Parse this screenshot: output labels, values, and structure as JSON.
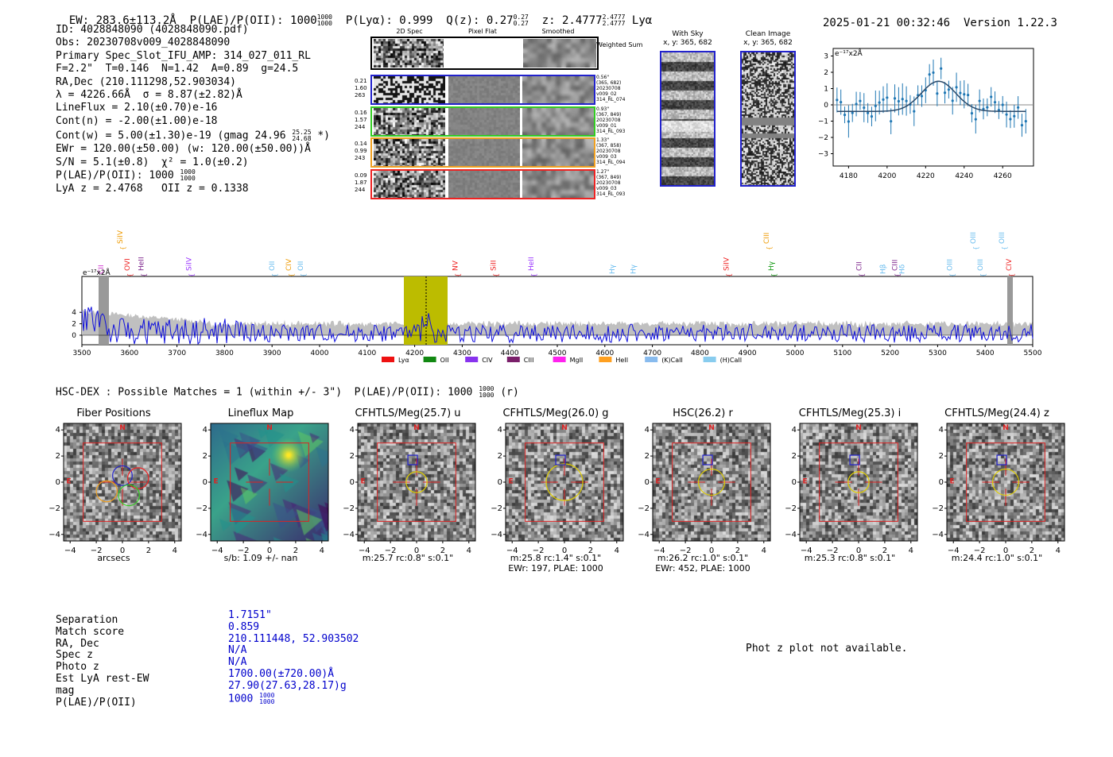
{
  "header": {
    "ew": "EW: 283.6±113.2Å",
    "plae_label": "P(LAE)/P(OII): 1000",
    "plae_hi": "1000",
    "plae_lo": "1000",
    "plya": "P(Lyα): 0.999",
    "qz_label": "Q(z): 0.27",
    "qz_hi": "0.27",
    "qz_lo": "0.27",
    "z_label": "z: 2.4777",
    "z_hi": "2.4777",
    "z_lo": "2.4777",
    "z_line": "Lyα",
    "timestamp": "2025-01-21 00:32:46",
    "version": "Version 1.22.3"
  },
  "info": {
    "id": "ID: 4028848090 (4028848090.pdf)",
    "obs": "Obs: 20230708v009_4028848090",
    "primary": "Primary Spec_Slot_IFU_AMP: 314_027_011_RL",
    "params": "F=2.2\"  T=0.146  N=1.42  A=0.89  g=24.5",
    "radec": "RA,Dec (210.111298,52.903034)",
    "lambda": "λ = 4226.66Å  σ = 8.87(±2.82)Å",
    "lineflux": "LineFlux = 2.10(±0.70)e-16",
    "contn": "Cont(n) = -2.00(±1.00)e-18",
    "contw": "Cont(w) = 5.00(±1.30)e-19 (gmag 24.96",
    "contw_hi": "25.25",
    "contw_lo": "24.68",
    "contw_end": "*)",
    "ewr": "EWr = 120.00(±50.00) (w: 120.00(±50.00))Å",
    "sn": "S/N = 5.1(±0.8)  χ² = 1.0(±0.2)",
    "plae": "P(LAE)/P(OII): 1000",
    "plae_hi": "1000",
    "plae_lo": "1000",
    "lyaz": "LyA z = 2.4768   OII z = 0.1338"
  },
  "cutouts": {
    "col_2d": "2D Spec",
    "col_flat": "Pixel Flat",
    "col_smooth": "Smoothed",
    "weighted": "Weighted Sum",
    "rows": [
      {
        "w1": "0.21",
        "w2": "1.60",
        "w3": "263",
        "d1": "0.56\"",
        "d2": "(365, 682)",
        "d3": "20230708",
        "d4": "v009_02",
        "d5": "314_RL_074",
        "color": "#2222cc"
      },
      {
        "w1": "0.16",
        "w2": "1.57",
        "w3": "244",
        "d1": "0.93\"",
        "d2": "(367, 849)",
        "d3": "20230708",
        "d4": "v009_01",
        "d5": "314_RL_093",
        "color": "#33cc22"
      },
      {
        "w1": "0.14",
        "w2": "0.99",
        "w3": "243",
        "d1": "1.33\"",
        "d2": "(367, 858)",
        "d3": "20230708",
        "d4": "v009_03",
        "d5": "314_RL_094",
        "color": "#f0a020"
      },
      {
        "w1": "0.09",
        "w2": "1.87",
        "w3": "244",
        "d1": "1.27\"",
        "d2": "(367, 849)",
        "d3": "20230708",
        "d4": "v009_03",
        "d5": "314_RL_093",
        "color": "#ee2222"
      }
    ],
    "with_sky": "With Sky",
    "with_sky_xy": "x, y: 365, 682",
    "clean": "Clean Image",
    "clean_xy": "x, y: 365, 682"
  },
  "fit_plot": {
    "unit": "e⁻¹⁷x2Å",
    "y_ticks": [
      "3",
      "2",
      "1",
      "0",
      "−1",
      "−2",
      "−3"
    ],
    "x_ticks": [
      "4180",
      "4200",
      "4220",
      "4240",
      "4260"
    ]
  },
  "spectrum": {
    "unit": "e⁻¹⁷x2Å",
    "y_ticks": [
      "4",
      "2",
      "0"
    ],
    "x_ticks": [
      "3500",
      "3600",
      "3700",
      "3800",
      "3900",
      "4000",
      "4100",
      "4200",
      "4300",
      "4400",
      "4500",
      "4600",
      "4700",
      "4800",
      "4900",
      "5000",
      "5100",
      "5200",
      "5300",
      "5400",
      "5500"
    ],
    "lines": [
      {
        "name": "CII",
        "color": "#cc33cc",
        "row": 2
      },
      {
        "name": "SiIV",
        "color": "#ee9a00",
        "row": 0
      },
      {
        "name": "OVI",
        "color": "#ee2222",
        "row": 1
      },
      {
        "name": "HeII",
        "color": "#7a1f8a",
        "row": 1
      },
      {
        "name": "SiIV",
        "color": "#9933ff",
        "row": 1
      },
      {
        "name": "OII",
        "color": "#66bbee",
        "row": 1
      },
      {
        "name": "CIV",
        "color": "#ee9a00",
        "row": 1
      },
      {
        "name": "OII",
        "color": "#66bbee",
        "row": 1
      },
      {
        "name": "NV",
        "color": "#ee2222",
        "row": 1
      },
      {
        "name": "SiII",
        "color": "#ee2222",
        "row": 1
      },
      {
        "name": "HeII",
        "color": "#9933ff",
        "row": 1
      },
      {
        "name": "Hγ",
        "color": "#66bbee",
        "row": 2
      },
      {
        "name": "Hγ",
        "color": "#66bbee",
        "row": 2
      },
      {
        "name": "SiIV",
        "color": "#ee2222",
        "row": 1
      },
      {
        "name": "CIII",
        "color": "#ee9a00",
        "row": 0
      },
      {
        "name": "Hγ",
        "color": "#119911",
        "row": 1
      },
      {
        "name": "CII",
        "color": "#7a1f8a",
        "row": 1
      },
      {
        "name": "Hβ",
        "color": "#66bbee",
        "row": 2
      },
      {
        "name": "CIII",
        "color": "#7a1f8a",
        "row": 1
      },
      {
        "name": "Hδ",
        "color": "#66bbee",
        "row": 2
      },
      {
        "name": "OIII",
        "color": "#66bbee",
        "row": 1
      },
      {
        "name": "OIII",
        "color": "#66bbee",
        "row": 0
      },
      {
        "name": "OIII",
        "color": "#66bbee",
        "row": 1
      },
      {
        "name": "OIII",
        "color": "#66bbee",
        "row": 0
      },
      {
        "name": "CIV",
        "color": "#ee2222",
        "row": 1
      }
    ],
    "legend": [
      {
        "name": "Lyα",
        "color": "#ee1111"
      },
      {
        "name": "OII",
        "color": "#118811"
      },
      {
        "name": "CIV",
        "color": "#8833ee"
      },
      {
        "name": "CIII",
        "color": "#7a1f6a"
      },
      {
        "name": "MgII",
        "color": "#ff22ee"
      },
      {
        "name": "HeII",
        "color": "#ffa020"
      },
      {
        "name": "(K)CaII",
        "color": "#88bbee"
      },
      {
        "name": "(H)CaII",
        "color": "#88ccee"
      }
    ]
  },
  "hsc": {
    "title": "HSC-DEX : Possible Matches = 1 (within +/- 3\")  P(LAE)/P(OII): 1000",
    "frac_hi": "1000",
    "frac_lo": "1000",
    "band": "(r)",
    "panels": [
      {
        "title": "Fiber Positions",
        "cap1": "arcsecs",
        "cap2": ""
      },
      {
        "title": "Lineflux Map",
        "cap1": "s/b: 1.09 +/- nan",
        "cap2": ""
      },
      {
        "title": "CFHTLS/Meg(25.7) u",
        "cap1": "m:25.7 rc:0.8\"  s:0.1\"",
        "cap2": ""
      },
      {
        "title": "CFHTLS/Meg(26.0) g",
        "cap1": "m:25.8 rc:1.4\"  s:0.1\"",
        "cap2": "EWr: 197, PLAE: 1000"
      },
      {
        "title": "HSC(26.2) r",
        "cap1": "m:26.2 rc:1.0\"  s:0.1\"",
        "cap2": "EWr: 452, PLAE: 1000"
      },
      {
        "title": "CFHTLS/Meg(25.3) i",
        "cap1": "m:25.3 rc:0.8\"  s:0.1\"",
        "cap2": ""
      },
      {
        "title": "CFHTLS/Meg(24.4) z",
        "cap1": "m:24.4 rc:1.0\"  s:0.1\"",
        "cap2": ""
      }
    ],
    "ticks": [
      "4",
      "2",
      "0",
      "−2",
      "−4"
    ],
    "xticks": [
      "−4",
      "−2",
      "0",
      "2",
      "4"
    ],
    "north": "N",
    "east": "E"
  },
  "match": {
    "labels": [
      "Separation",
      "Match score",
      "RA, Dec",
      "Spec z",
      "Photo z",
      "Est LyA rest-EW",
      "mag",
      "P(LAE)/P(OII)"
    ],
    "values": [
      "1.7151\"",
      "0.859",
      "210.111448, 52.903502",
      "N/A",
      "N/A",
      "1700.00(±720.00)Å",
      "27.90(27.63,28.17)g",
      "1000"
    ],
    "plae_hi": "1000",
    "plae_lo": "1000",
    "photz_na": "Phot z plot not available."
  }
}
